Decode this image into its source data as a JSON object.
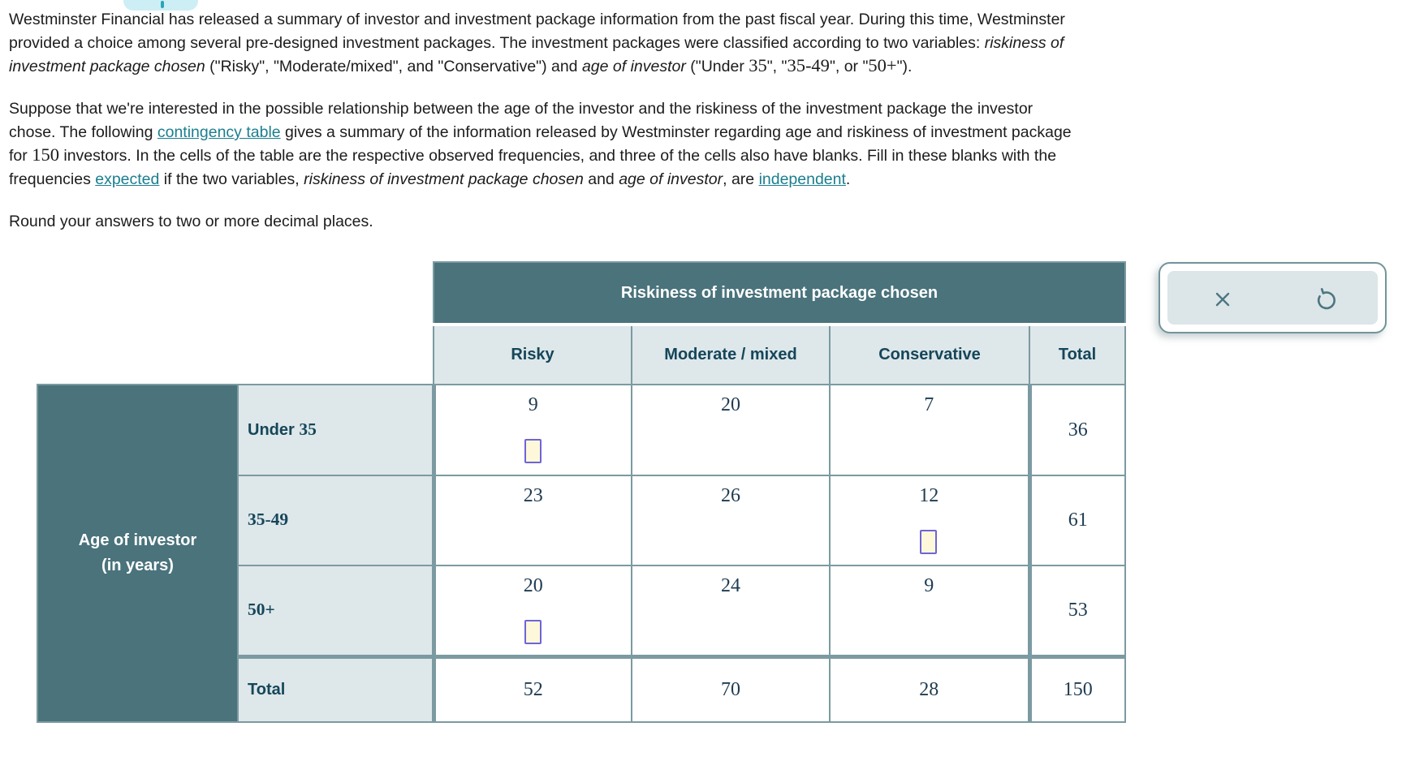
{
  "colors": {
    "dark_teal": "#4a737c",
    "light_cell": "#dee7e9",
    "grid_border": "#7b9aa1",
    "header_text": "#15465a",
    "number_text": "#1d3b51",
    "link": "#1b7e8f",
    "input_border": "#6e65d6",
    "input_fill": "#fdf8da"
  },
  "intro": {
    "p1": [
      [
        {
          "t": "Westminster Financial has released a summary of investor and investment package information from the past fiscal year. During this time, Westminster"
        }
      ],
      [
        {
          "t": "provided a choice among several pre-designed investment packages. The investment packages were classified according to two variables: "
        },
        {
          "t": "riskiness of",
          "style": "italic"
        }
      ],
      [
        {
          "t": "investment package chosen",
          "style": "italic"
        },
        {
          "t": " (\"Risky\", \"Moderate/mixed\", and \"Conservative\") and "
        },
        {
          "t": "age of investor",
          "style": "italic"
        },
        {
          "t": " (\"Under "
        },
        {
          "t": "35",
          "style": "serif"
        },
        {
          "t": "\", \""
        },
        {
          "t": "35-49",
          "style": "serif"
        },
        {
          "t": "\", or \""
        },
        {
          "t": "50+",
          "style": "serif"
        },
        {
          "t": "\")."
        }
      ]
    ],
    "p2": [
      [
        {
          "t": "Suppose that we're interested in the possible relationship between the age of the investor and the riskiness of the investment package the investor"
        }
      ],
      [
        {
          "t": "chose. The following "
        },
        {
          "t": "contingency table",
          "style": "link",
          "name": "contingency-table-link"
        },
        {
          "t": " gives a summary of the information released by Westminster regarding age and riskiness of investment package"
        }
      ],
      [
        {
          "t": "for "
        },
        {
          "t": "150",
          "style": "serif"
        },
        {
          "t": " investors. In the cells of the table are the respective observed frequencies, and three of the cells also have blanks. Fill in these blanks with the"
        }
      ],
      [
        {
          "t": "frequencies "
        },
        {
          "t": "expected",
          "style": "link",
          "name": "expected-link"
        },
        {
          "t": " if the two variables, "
        },
        {
          "t": "riskiness of investment package chosen",
          "style": "italic"
        },
        {
          "t": " and "
        },
        {
          "t": "age of investor",
          "style": "italic"
        },
        {
          "t": ", are "
        },
        {
          "t": "independent",
          "style": "link",
          "name": "independent-link"
        },
        {
          "t": "."
        }
      ]
    ],
    "p3": "Round your answers to two or more decimal places."
  },
  "table": {
    "col_group_header": "Riskiness of investment package chosen",
    "row_group_header_line1": "Age of investor",
    "row_group_header_line2": "(in years)",
    "col_headers": {
      "risky": "Risky",
      "moderate": "Moderate / mixed",
      "conservative": "Conservative",
      "total": "Total"
    },
    "rows": [
      {
        "label_sans": "Under ",
        "label_serif": "35",
        "risky": "9",
        "moderate": "20",
        "conservative": "7",
        "total": "36"
      },
      {
        "label_sans": "",
        "label_serif": "35-49",
        "risky": "23",
        "moderate": "26",
        "conservative": "12",
        "total": "61"
      },
      {
        "label_sans": "",
        "label_serif": "50+",
        "risky": "20",
        "moderate": "24",
        "conservative": "9",
        "total": "53"
      }
    ],
    "totals_row": {
      "label": "Total",
      "risky": "52",
      "moderate": "70",
      "conservative": "28",
      "total": "150"
    },
    "blank_value": ""
  },
  "answer_panel": {
    "buttons": [
      {
        "name": "clear-button",
        "icon": "x-icon"
      },
      {
        "name": "undo-button",
        "icon": "undo-icon"
      }
    ]
  }
}
